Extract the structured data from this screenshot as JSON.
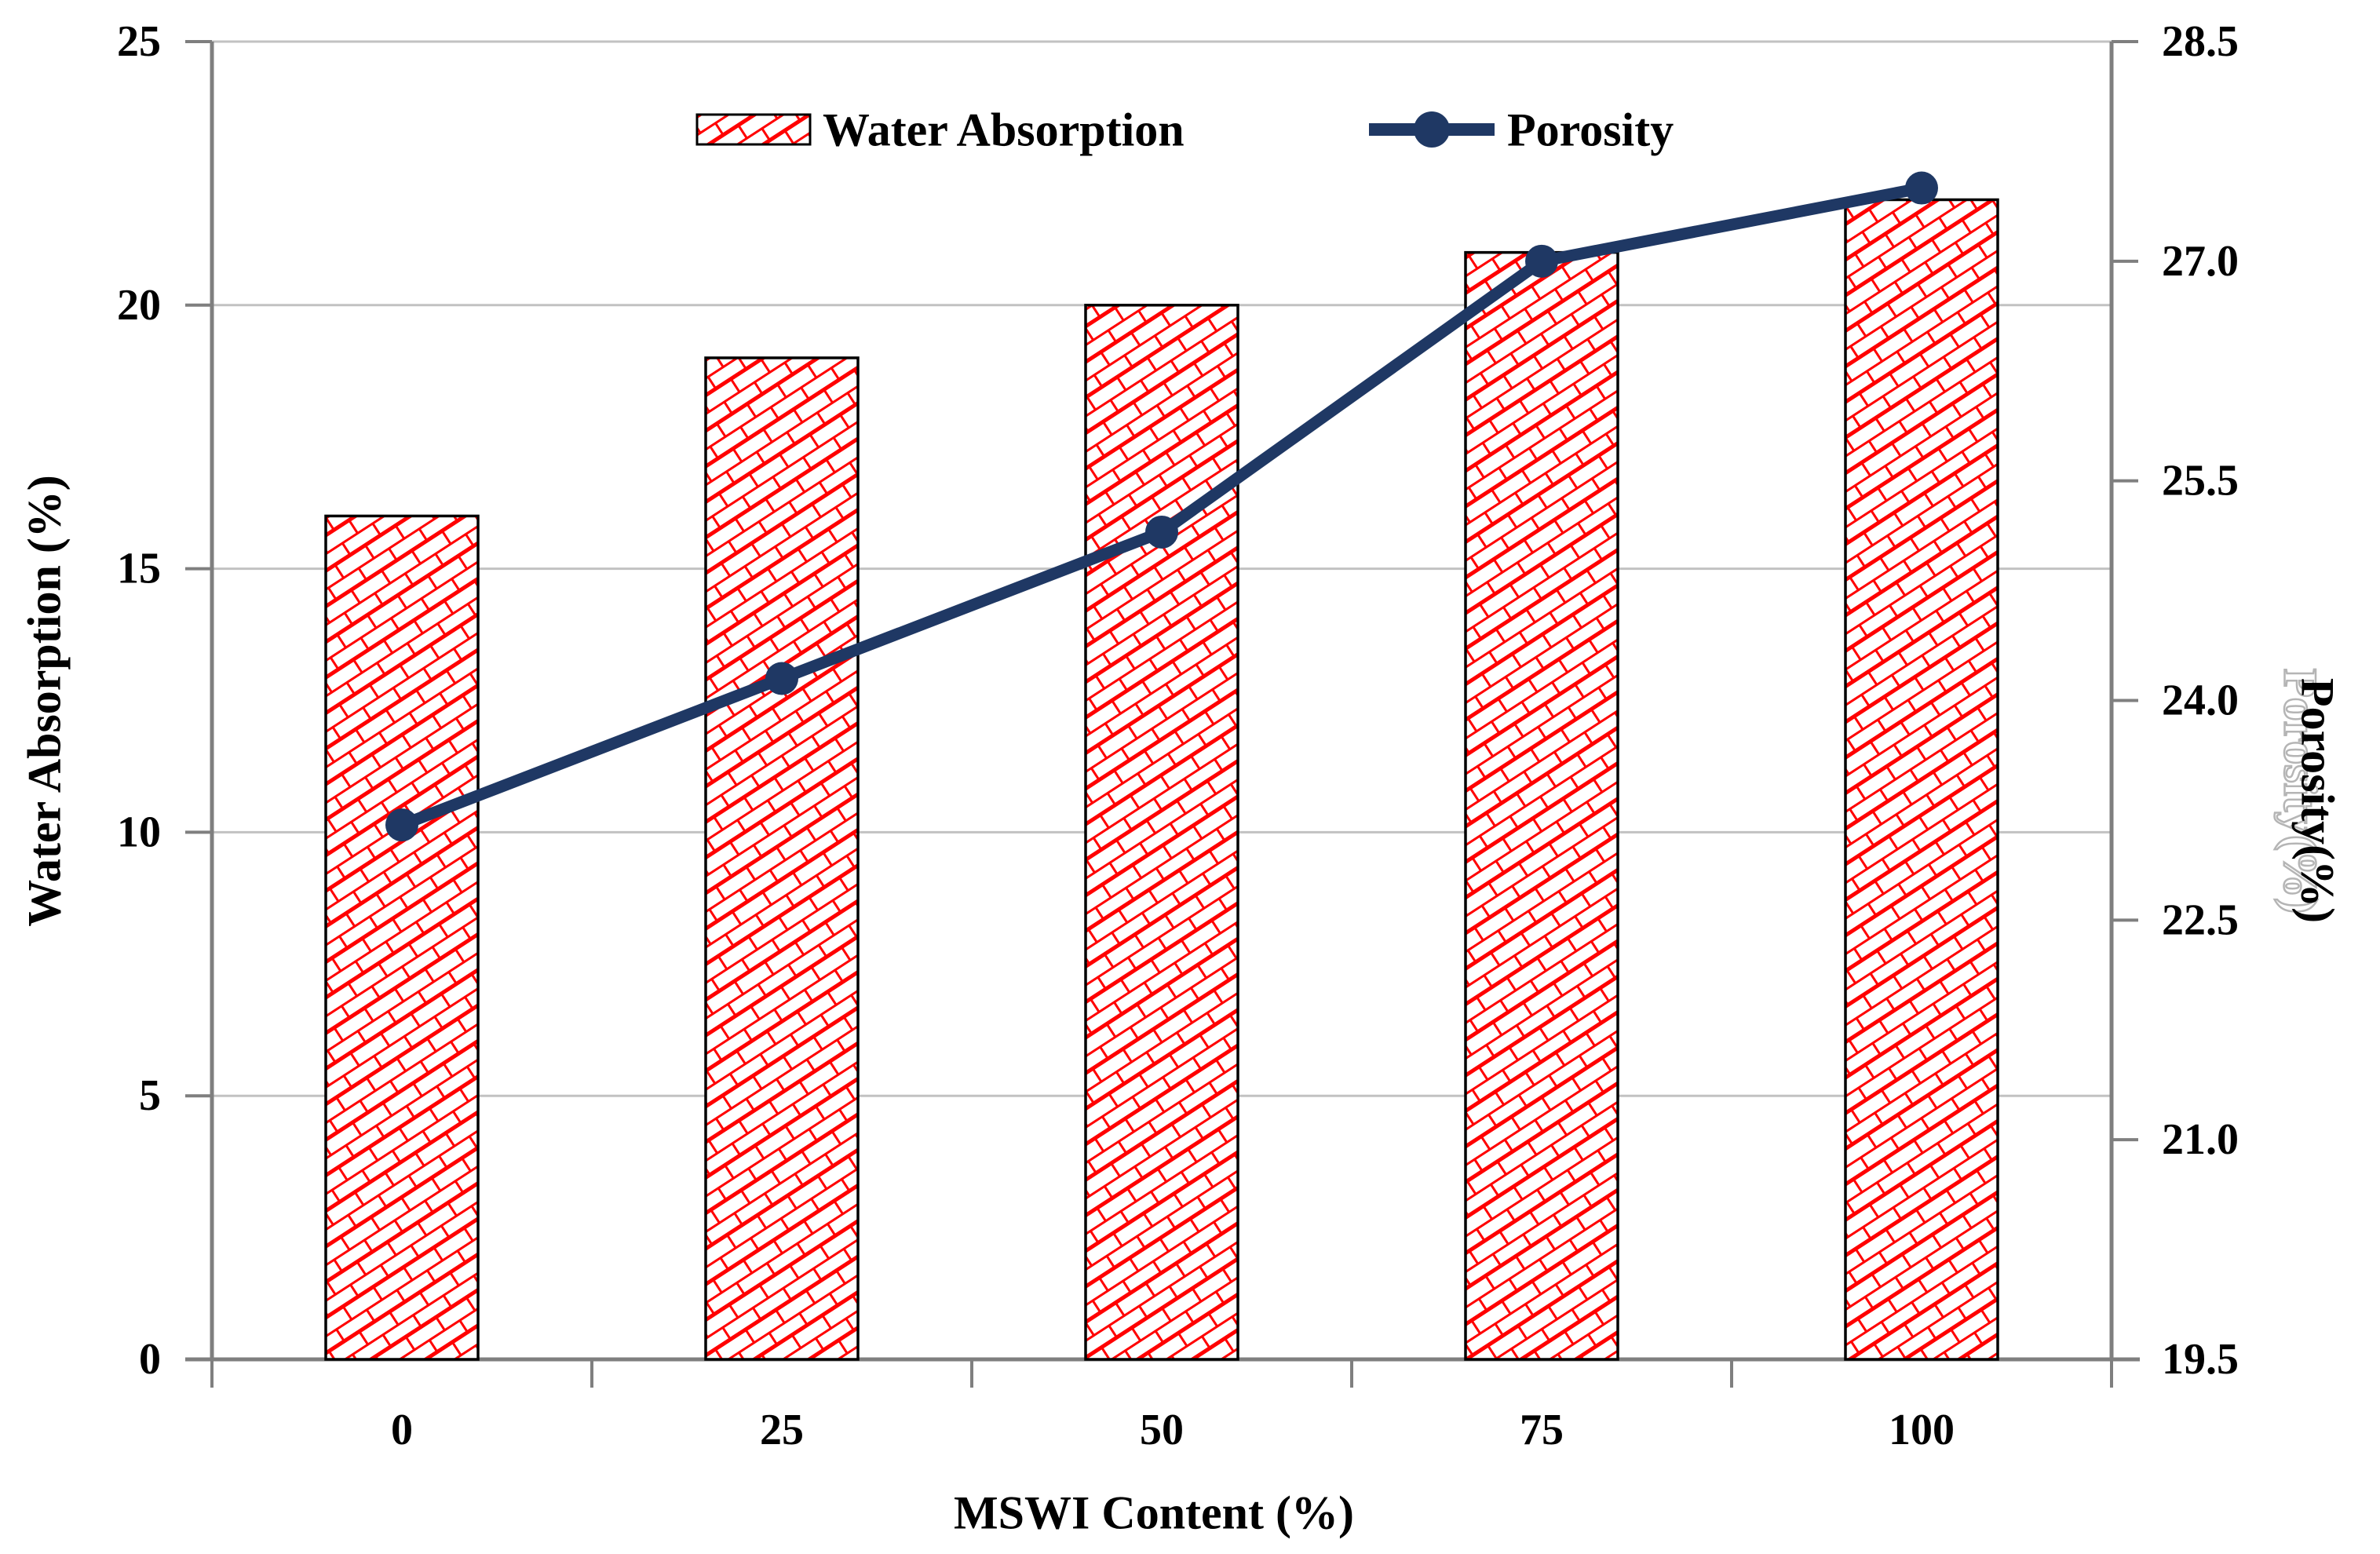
{
  "chart_data": {
    "type": "bar-line-combo",
    "categories": [
      "0",
      "25",
      "50",
      "75",
      "100"
    ],
    "series": [
      {
        "name": "Water Absorption",
        "type": "bar",
        "axis": "left",
        "values": [
          16,
          19,
          20,
          21,
          22
        ],
        "fill_style": "red-diagonal-brick-hatch-on-white",
        "hatch_color": "#FF0000",
        "border_color": "#000000"
      },
      {
        "name": "Porosity",
        "type": "line",
        "axis": "right",
        "values": [
          23.15,
          24.15,
          25.15,
          27.0,
          27.5
        ],
        "color": "#1F3864",
        "marker": "filled-circle"
      }
    ],
    "title": "",
    "xlabel": "MSWI Content (%)",
    "ylabel_left": "Water Absorption (%)",
    "ylabel_right": "Porosity(%)",
    "left_axis": {
      "min": 0,
      "max": 25,
      "step": 5,
      "tick_labels": [
        "0",
        "5",
        "10",
        "15",
        "20",
        "25"
      ]
    },
    "right_axis": {
      "min": 19.5,
      "max": 28.5,
      "step": 1.5,
      "tick_labels": [
        "19.5",
        "21.0",
        "22.5",
        "24.0",
        "25.5",
        "27.0",
        "28.5"
      ]
    },
    "grid": "horizontal-major-left-axis-on",
    "legend_position": "top-center"
  },
  "legend": {
    "water_absorption_label": "Water Absorption",
    "porosity_label": "Porosity"
  },
  "colors": {
    "background": "#FFFFFF",
    "bar_hatch": "#FF0000",
    "bar_border": "#000000",
    "line": "#1F3864",
    "gridline": "#C2C2C2",
    "axis": "#7F7F7F",
    "text": "#000000"
  }
}
